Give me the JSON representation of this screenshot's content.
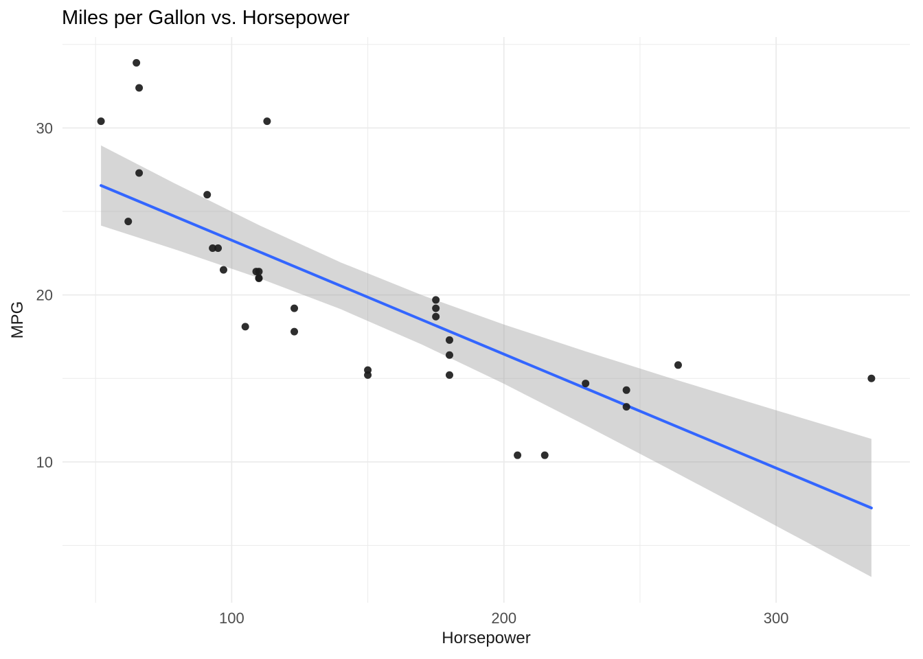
{
  "chart_data": {
    "type": "scatter",
    "title": "Miles per Gallon vs. Horsepower",
    "xlabel": "Horsepower",
    "ylabel": "MPG",
    "xlim": [
      37.85,
      349.15
    ],
    "ylim": [
      1.57,
      35.44
    ],
    "x_ticks": [
      100,
      200,
      300
    ],
    "y_ticks": [
      10,
      20,
      30
    ],
    "x_minor_ticks": [
      50,
      150,
      250
    ],
    "y_minor_ticks": [
      5,
      15,
      25,
      35
    ],
    "grid": true,
    "legend_position": "none",
    "points": [
      [
        110,
        21.0
      ],
      [
        110,
        21.0
      ],
      [
        93,
        22.8
      ],
      [
        110,
        21.4
      ],
      [
        175,
        18.7
      ],
      [
        105,
        18.1
      ],
      [
        245,
        14.3
      ],
      [
        62,
        24.4
      ],
      [
        95,
        22.8
      ],
      [
        123,
        19.2
      ],
      [
        123,
        17.8
      ],
      [
        180,
        16.4
      ],
      [
        180,
        17.3
      ],
      [
        180,
        15.2
      ],
      [
        205,
        10.4
      ],
      [
        215,
        10.4
      ],
      [
        230,
        14.7
      ],
      [
        66,
        32.4
      ],
      [
        52,
        30.4
      ],
      [
        65,
        33.9
      ],
      [
        97,
        21.5
      ],
      [
        150,
        15.5
      ],
      [
        150,
        15.2
      ],
      [
        245,
        13.3
      ],
      [
        175,
        19.2
      ],
      [
        66,
        27.3
      ],
      [
        91,
        26.0
      ],
      [
        113,
        30.4
      ],
      [
        264,
        15.8
      ],
      [
        175,
        19.7
      ],
      [
        335,
        15.0
      ],
      [
        109,
        21.4
      ]
    ],
    "regression": {
      "type": "linear",
      "intercept": 30.0989,
      "slope": -0.06823,
      "x_range": [
        52,
        335
      ]
    },
    "ci_ribbon": {
      "x": [
        52,
        80,
        110,
        140,
        170,
        200,
        230,
        260,
        290,
        310,
        335
      ],
      "upper": [
        28.95,
        26.6,
        24.18,
        21.95,
        19.98,
        18.23,
        16.62,
        15.08,
        13.59,
        12.6,
        11.38
      ],
      "lower": [
        24.15,
        22.68,
        21.01,
        19.15,
        17.02,
        14.68,
        12.19,
        9.63,
        7.04,
        5.3,
        3.11
      ]
    },
    "colors": {
      "point": "#1c1c1c",
      "line": "#3366FF",
      "ribbon": "#999999",
      "ribbon_opacity": 0.4,
      "grid": "#EBEBEB",
      "tick_text": "#4d4d4d",
      "axis_title_text": "#1a1a1a",
      "title_text": "#000000"
    }
  }
}
